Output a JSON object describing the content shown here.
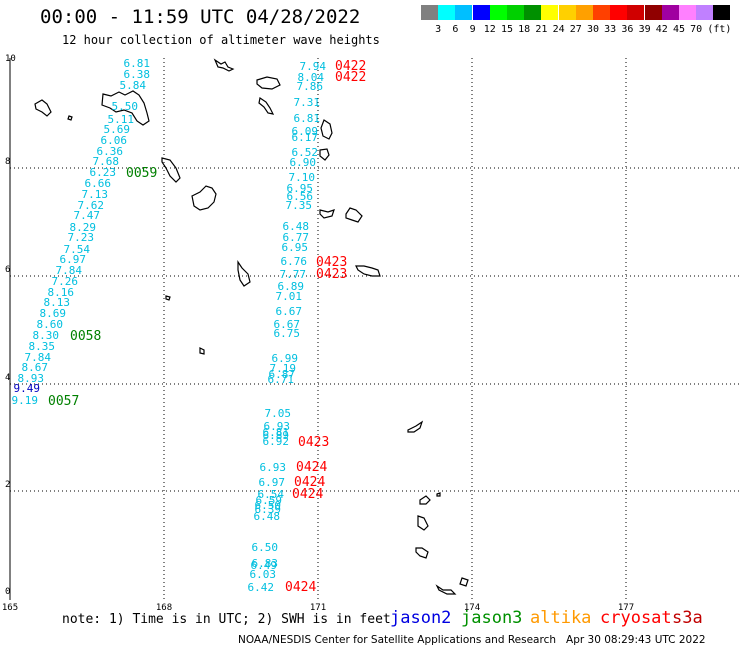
{
  "title": "00:00 - 11:59 UTC 04/28/2022",
  "subtitle": "12 hour collection of altimeter wave heights",
  "color_scale": {
    "colors": [
      "#808080",
      "#00ffff",
      "#00bfff",
      "#0000ff",
      "#00ff00",
      "#00d000",
      "#009000",
      "#ffff00",
      "#ffd000",
      "#ffa000",
      "#ff4000",
      "#ff0000",
      "#d00000",
      "#900000",
      "#a000a0",
      "#ff80ff",
      "#c080ff",
      "#000000"
    ],
    "labels": [
      "3",
      "6",
      "9",
      "12",
      "15",
      "18",
      "21",
      "24",
      "27",
      "30",
      "33",
      "36",
      "39",
      "42",
      "45",
      "70",
      "(ft)"
    ]
  },
  "axes": {
    "x_ticks": [
      "165",
      "168",
      "171",
      "174",
      "177"
    ],
    "y_ticks": [
      "0",
      "2",
      "4",
      "6",
      "8",
      "10"
    ]
  },
  "passes": {
    "west": {
      "color": "#00bfdf",
      "values": [
        "6.81",
        "6.38",
        "5.84",
        "5.50",
        "5.11",
        "5.69",
        "6.06",
        "6.36",
        "7.68",
        "6.23",
        "6.66",
        "7.13",
        "7.62",
        "7.47",
        "8.29",
        "7.23",
        "7.54",
        "6.97",
        "7.84",
        "7.26",
        "8.16",
        "8.13",
        "8.69",
        "8.60",
        "8.30",
        "8.35",
        "7.84",
        "8.67",
        "8.93",
        "9.49",
        "9.19"
      ],
      "times": [
        "0059",
        "0058",
        "0057"
      ]
    },
    "east": {
      "color": "#00bfdf",
      "values": [
        "7.94",
        "8.04",
        "7.86",
        "7.31",
        "6.81",
        "6.09",
        "6.17",
        "6.52",
        "6.90",
        "7.10",
        "6.95",
        "6.56",
        "7.35",
        "6.48",
        "6.77",
        "6.95",
        "6.76",
        "7.77",
        "6.89",
        "7.01",
        "6.67",
        "6.67",
        "6.75",
        "6.99",
        "7.19",
        "6.87",
        "6.71",
        "7.05",
        "6.93",
        "6.81",
        "6.89",
        "6.92",
        "6.93",
        "6.97",
        "6.54",
        "6.59",
        "6.50",
        "6.39",
        "6.48",
        "6.50",
        "6.83",
        "6.49",
        "6.03",
        "6.42"
      ],
      "times": [
        "0422",
        "0422",
        "0423",
        "0423",
        "0423",
        "0424",
        "0424",
        "0424",
        "0424"
      ]
    }
  },
  "note": "note: 1) Time is in UTC; 2) SWH is in feet",
  "satellites": [
    {
      "name": "jason2",
      "color": "#0000e0"
    },
    {
      "name": "jason3",
      "color": "#009000"
    },
    {
      "name": "altika",
      "color": "#ff9900"
    },
    {
      "name": "cryosat",
      "color": "#ff0000"
    },
    {
      "name": "s3a",
      "color": "#c00000"
    }
  ],
  "credit": "NOAA/NESDIS Center for Satellite Applications and Research   Apr 30 08:29:43 UTC 2022"
}
